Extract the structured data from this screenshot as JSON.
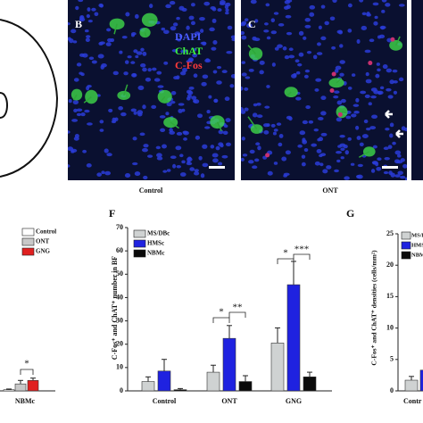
{
  "images": [
    {
      "label": "B",
      "caption": "Control",
      "channels": [
        {
          "name": "DAPI",
          "color": "#4a5cff"
        },
        {
          "name": "ChAT",
          "color": "#3cf03c"
        },
        {
          "name": "C-Fos",
          "color": "#ff3a3a"
        }
      ]
    },
    {
      "label": "C",
      "caption": "ONT"
    }
  ],
  "left_chart": {
    "category": "NBMc",
    "series": [
      {
        "name": "Control",
        "color": "#ffffff",
        "value": 0.5,
        "error": 0.3
      },
      {
        "name": "ONT",
        "color": "#c8c8c8",
        "value": 3,
        "error": 1.5
      },
      {
        "name": "GNG",
        "color": "#e02020",
        "value": 4.5,
        "error": 1
      }
    ],
    "annotation": "*"
  },
  "chart_data": {
    "type": "bar",
    "label": "F",
    "ylabel": "C-Fos⁺ and ChAT⁺ number in BF",
    "categories": [
      "Control",
      "ONT",
      "GNG"
    ],
    "series": [
      {
        "name": "MS/DBc",
        "color": "#cfd2d2",
        "values": [
          4,
          8,
          20.5
        ],
        "errors": [
          2,
          3,
          6.5
        ]
      },
      {
        "name": "HMSc",
        "color": "#1f22e0",
        "values": [
          8.5,
          22.5,
          45.5
        ],
        "errors": [
          5,
          5.5,
          10
        ]
      },
      {
        "name": "NBMc",
        "color": "#0a0a0a",
        "values": [
          0.5,
          4,
          6
        ],
        "errors": [
          0.5,
          2.5,
          2
        ]
      }
    ],
    "annotations": [
      "*",
      "**",
      "*",
      "***"
    ],
    "ylim": [
      0,
      70
    ],
    "yticks": [
      0,
      10,
      20,
      30,
      40,
      50,
      60,
      70
    ]
  },
  "chart_g": {
    "label": "G",
    "ylabel": "C-Fos⁺ and ChAT⁺ densities (cells/mm²)",
    "category": "Contr",
    "series": [
      {
        "name": "MS/DBc",
        "color": "#cfd2d2",
        "value": 1.7,
        "error": 0.6
      },
      {
        "name": "HMSc",
        "color": "#1f22e0",
        "value": 3.3
      },
      {
        "name": "NBMc",
        "color": "#0a0a0a"
      }
    ],
    "ylim": [
      0,
      25
    ],
    "yticks": [
      0,
      5,
      10,
      15,
      20,
      25
    ]
  }
}
